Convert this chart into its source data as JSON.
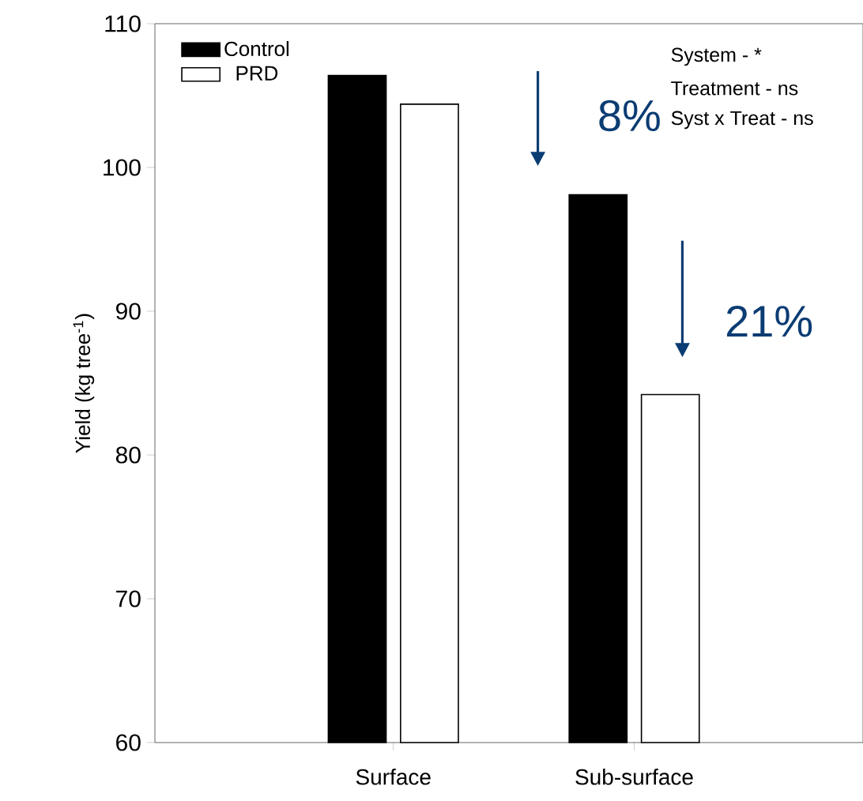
{
  "chart_data": {
    "type": "bar",
    "ylabel": "Yield (kg tree$^{-1}$)",
    "categories": [
      "Surface",
      "Sub-surface"
    ],
    "series": [
      {
        "name": "Control",
        "color": "#000000",
        "values": [
          106.4,
          98.1
        ]
      },
      {
        "name": "PRD",
        "color": "#ffffff",
        "values": [
          104.4,
          84.2
        ]
      }
    ],
    "ylim": [
      60,
      110
    ],
    "yticks": [
      60,
      70,
      80,
      90,
      100,
      110
    ],
    "legend": "top left",
    "annotations": [
      "8%",
      "21%",
      "System - *",
      "Treatment - ns",
      "Syst x Treat - ns"
    ]
  }
}
